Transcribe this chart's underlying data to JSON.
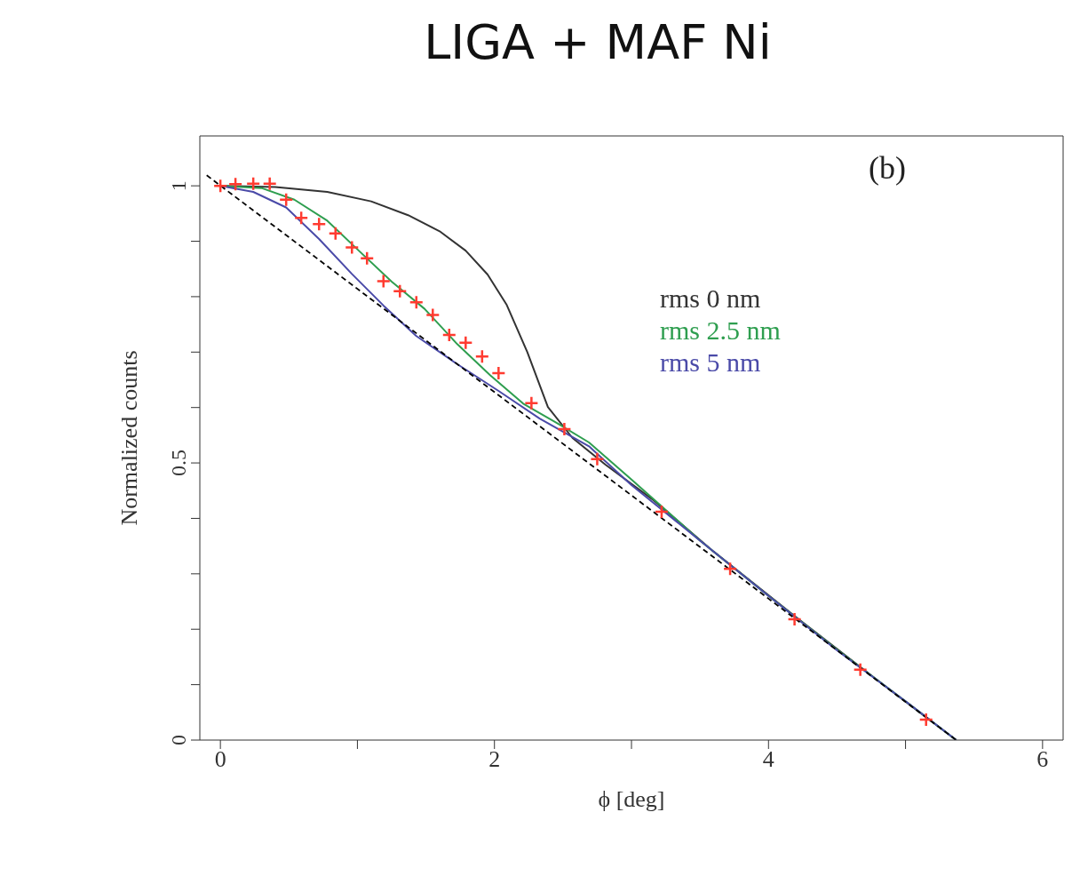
{
  "chart_data": {
    "type": "line",
    "title": "LIGA + MAF Ni",
    "xlabel": "ϕ [deg]",
    "ylabel": "Normalized counts",
    "annotations": [
      "(b)"
    ],
    "xlim": [
      -0.15,
      6.15
    ],
    "ylim": [
      0,
      1.09
    ],
    "xticks": [
      0,
      {
        "value": 1,
        "label": null
      },
      2,
      {
        "value": 3,
        "label": null
      },
      4,
      {
        "value": 5,
        "label": null
      },
      6
    ],
    "yticks": [
      0,
      {
        "value": 0.1,
        "label": null
      },
      {
        "value": 0.2,
        "label": null
      },
      {
        "value": 0.3,
        "label": null
      },
      {
        "value": 0.4,
        "label": null
      },
      0.5,
      {
        "value": 0.6,
        "label": null
      },
      {
        "value": 0.7,
        "label": null
      },
      {
        "value": 0.8,
        "label": null
      },
      {
        "value": 0.9,
        "label": null
      },
      1
    ],
    "legend": "top right",
    "marker": "none",
    "line_style": "solid",
    "series": [
      {
        "name": "rms 0 nm",
        "color": "#333333",
        "x": [
          0,
          0.4,
          0.78,
          1.1,
          1.37,
          1.6,
          1.79,
          1.95,
          2.09,
          2.24,
          2.39,
          2.57,
          2.81,
          3.16,
          3.6,
          4.2,
          4.8,
          5.37
        ],
        "values": [
          1,
          0.998,
          0.989,
          0.972,
          0.947,
          0.918,
          0.883,
          0.84,
          0.785,
          0.7,
          0.601,
          0.545,
          0.497,
          0.433,
          0.34,
          0.222,
          0.107,
          0
        ]
      },
      {
        "name": "rms 2.5 nm",
        "color": "#2e9e4f",
        "x": [
          0,
          0.3,
          0.54,
          0.78,
          1.01,
          1.25,
          1.49,
          1.73,
          1.97,
          2.21,
          2.45,
          2.69,
          3.0,
          3.5,
          4.0,
          4.5,
          5.0,
          5.37
        ],
        "values": [
          1,
          0.996,
          0.975,
          0.937,
          0.883,
          0.827,
          0.778,
          0.714,
          0.658,
          0.607,
          0.573,
          0.537,
          0.47,
          0.36,
          0.26,
          0.163,
          0.07,
          0
        ]
      },
      {
        "name": "rms 5 nm",
        "color": "#4a4aa8",
        "x": [
          0,
          0.24,
          0.48,
          0.72,
          0.96,
          1.19,
          1.43,
          1.73,
          2.03,
          2.33,
          2.69,
          3.0,
          3.5,
          4.0,
          4.5,
          5.0,
          5.37
        ],
        "values": [
          1,
          0.989,
          0.961,
          0.904,
          0.841,
          0.784,
          0.729,
          0.678,
          0.63,
          0.58,
          0.53,
          0.46,
          0.36,
          0.26,
          0.162,
          0.07,
          0
        ]
      },
      {
        "color": "#000000",
        "line_style": "dashed",
        "x": [
          -0.1,
          5.37
        ],
        "values": [
          1.019,
          0
        ]
      },
      {
        "type": "scatter",
        "marker": "cross",
        "color": "#ff3b30",
        "x": [
          0,
          0.11,
          0.24,
          0.36,
          0.48,
          0.59,
          0.72,
          0.84,
          0.96,
          1.07,
          1.19,
          1.31,
          1.43,
          1.55,
          1.67,
          1.79,
          1.91,
          2.03,
          2.27,
          2.51,
          2.75,
          3.22,
          3.72,
          4.19,
          4.67,
          5.15
        ],
        "values": [
          1,
          1.003,
          1.004,
          1.004,
          0.975,
          0.942,
          0.931,
          0.914,
          0.889,
          0.869,
          0.828,
          0.81,
          0.79,
          0.767,
          0.731,
          0.717,
          0.692,
          0.662,
          0.608,
          0.561,
          0.507,
          0.412,
          0.309,
          0.218,
          0.127,
          0.037
        ]
      }
    ]
  }
}
